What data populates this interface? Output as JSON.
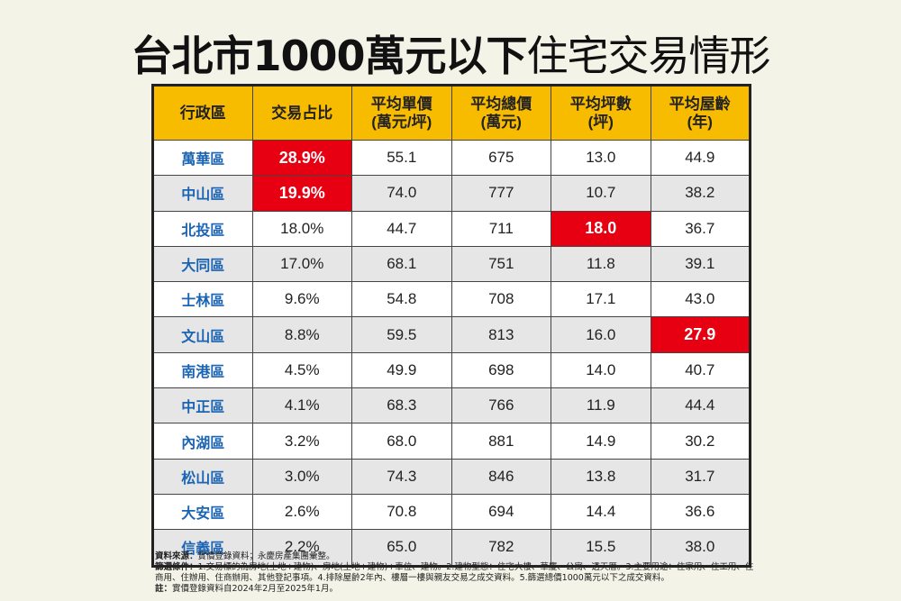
{
  "title": {
    "bold": "台北市1000萬元以下",
    "light": "住宅交易情形"
  },
  "headers": [
    [
      "行政區",
      ""
    ],
    [
      "交易占比",
      ""
    ],
    [
      "平均單價",
      "(萬元/坪)"
    ],
    [
      "平均總價",
      "(萬元)"
    ],
    [
      "平均坪數",
      "(坪)"
    ],
    [
      "平均屋齡",
      "(年)"
    ]
  ],
  "rows": [
    [
      "萬華區",
      "28.9%",
      "55.1",
      "675",
      "13.0",
      "44.9"
    ],
    [
      "中山區",
      "19.9%",
      "74.0",
      "777",
      "10.7",
      "38.2"
    ],
    [
      "北投區",
      "18.0%",
      "44.7",
      "711",
      "18.0",
      "36.7"
    ],
    [
      "大同區",
      "17.0%",
      "68.1",
      "751",
      "11.8",
      "39.1"
    ],
    [
      "士林區",
      "9.6%",
      "54.8",
      "708",
      "17.1",
      "43.0"
    ],
    [
      "文山區",
      "8.8%",
      "59.5",
      "813",
      "16.0",
      "27.9"
    ],
    [
      "南港區",
      "4.5%",
      "49.9",
      "698",
      "14.0",
      "40.7"
    ],
    [
      "中正區",
      "4.1%",
      "68.3",
      "766",
      "11.9",
      "44.4"
    ],
    [
      "內湖區",
      "3.2%",
      "68.0",
      "881",
      "14.9",
      "30.2"
    ],
    [
      "松山區",
      "3.0%",
      "74.3",
      "846",
      "13.8",
      "31.7"
    ],
    [
      "大安區",
      "2.6%",
      "70.8",
      "694",
      "14.4",
      "36.6"
    ],
    [
      "信義區",
      "2.2%",
      "65.0",
      "782",
      "15.5",
      "38.0"
    ]
  ],
  "highlights": [
    [
      0,
      1
    ],
    [
      1,
      1
    ],
    [
      2,
      4
    ],
    [
      5,
      5
    ]
  ],
  "colors": {
    "header": "#f7bb00",
    "highlight": "#e60012",
    "district": "#1b64b3"
  },
  "notes": {
    "source_label": "資料來源：",
    "source": "實價登錄資料；永慶房產集團彙整。",
    "filter_label": "篩選條件：",
    "filter": "1.交易標的為房地(土地+建物)、房地(土地+建物)+車位、建物。2.建物型態：住宅大樓、華廈、公寓、透天厝。3.主要用途：住家用、住工用、住商用、住辦用、住商辦用、其他登記事項。4.排除屋齡2年內、樓層一樓與親友交易之成交資料。5.篩選總價1000萬元以下之成交資料。",
    "note_label": "註：",
    "note": "實價登錄資料自2024年2月至2025年1月。"
  }
}
